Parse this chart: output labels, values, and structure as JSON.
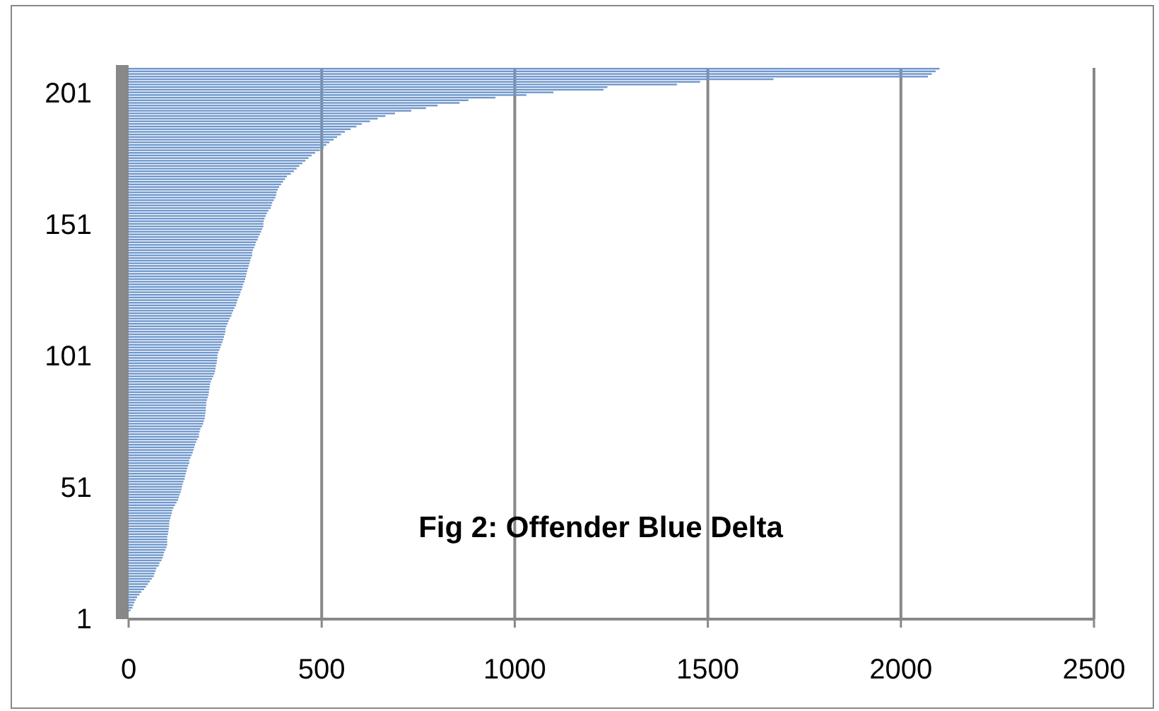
{
  "chart_data": {
    "type": "bar",
    "orientation": "horizontal",
    "title": "Fig 2: Offender Blue Delta",
    "categories": [
      null,
      null,
      null,
      null,
      null,
      null,
      null,
      null,
      null,
      "201",
      null,
      null,
      null,
      null,
      null,
      null,
      null,
      null,
      null,
      null,
      null,
      null,
      null,
      null,
      null,
      null,
      null,
      null,
      null,
      null,
      null,
      null,
      null,
      null,
      null,
      null,
      null,
      null,
      null,
      null,
      null,
      null,
      null,
      null,
      null,
      null,
      null,
      null,
      null,
      null,
      null,
      null,
      null,
      null,
      null,
      null,
      null,
      null,
      null,
      "151",
      null,
      null,
      null,
      null,
      null,
      null,
      null,
      null,
      null,
      null,
      null,
      null,
      null,
      null,
      null,
      null,
      null,
      null,
      null,
      null,
      null,
      null,
      null,
      null,
      null,
      null,
      null,
      null,
      null,
      null,
      null,
      null,
      null,
      null,
      null,
      null,
      null,
      null,
      null,
      null,
      null,
      null,
      null,
      null,
      null,
      null,
      null,
      null,
      null,
      "101",
      null,
      null,
      null,
      null,
      null,
      null,
      null,
      null,
      null,
      null,
      null,
      null,
      null,
      null,
      null,
      null,
      null,
      null,
      null,
      null,
      null,
      null,
      null,
      null,
      null,
      null,
      null,
      null,
      null,
      null,
      null,
      null,
      null,
      null,
      null,
      null,
      null,
      null,
      null,
      null,
      null,
      null,
      null,
      null,
      null,
      null,
      null,
      null,
      null,
      "51",
      null,
      null,
      null,
      null,
      null,
      null,
      null,
      null,
      null,
      null,
      null,
      null,
      null,
      null,
      null,
      null,
      null,
      null,
      null,
      null,
      null,
      null,
      null,
      null,
      null,
      null,
      null,
      null,
      null,
      null,
      null,
      null,
      null,
      null,
      null,
      null,
      null,
      null,
      null,
      null,
      null,
      null,
      null,
      null,
      null,
      null,
      null,
      null,
      null,
      "1"
    ],
    "values": [
      2100,
      2090,
      2080,
      2070,
      1670,
      1480,
      1420,
      1240,
      1230,
      1100,
      1030,
      950,
      880,
      857,
      800,
      770,
      732,
      690,
      665,
      645,
      625,
      604,
      590,
      575,
      560,
      550,
      540,
      531,
      520,
      512,
      505,
      495,
      483,
      474,
      466,
      458,
      450,
      442,
      435,
      428,
      420,
      410,
      405,
      400,
      395,
      390,
      386,
      383,
      382,
      380,
      376,
      372,
      370,
      368,
      362,
      358,
      355,
      352,
      350,
      349,
      349,
      346,
      343,
      340,
      336,
      334,
      330,
      328,
      325,
      322,
      320,
      320,
      317,
      315,
      313,
      311,
      309,
      307,
      305,
      304,
      302,
      300,
      297,
      295,
      293,
      290,
      288,
      285,
      282,
      280,
      278,
      274,
      271,
      268,
      266,
      262,
      259,
      256,
      253,
      251,
      251,
      249,
      247,
      245,
      243,
      240,
      238,
      235,
      232,
      230,
      230,
      229,
      228,
      226,
      225,
      224,
      222,
      219,
      216,
      213,
      211,
      210,
      209,
      208,
      207,
      205,
      203,
      201,
      201,
      200,
      200,
      199,
      198,
      197,
      195,
      193,
      190,
      186,
      184,
      182,
      182,
      178,
      175,
      172,
      170,
      168,
      166,
      163,
      160,
      157,
      157,
      154,
      152,
      150,
      148,
      146,
      145,
      142,
      140,
      138,
      137,
      135,
      132,
      130,
      128,
      124,
      120,
      116,
      113,
      112,
      110,
      108,
      106,
      105,
      105,
      104,
      103,
      102,
      100,
      100,
      100,
      100,
      98,
      95,
      92,
      90,
      88,
      85,
      80,
      78,
      72,
      70,
      67,
      65,
      60,
      55,
      50,
      45,
      40,
      33,
      28,
      22,
      18,
      15,
      12,
      10,
      5,
      0,
      0,
      0
    ],
    "color": "#6f97cc",
    "xlim": [
      0,
      2500
    ],
    "xticks": [
      0,
      500,
      1000,
      1500,
      2000,
      2500
    ],
    "grid": "x"
  }
}
